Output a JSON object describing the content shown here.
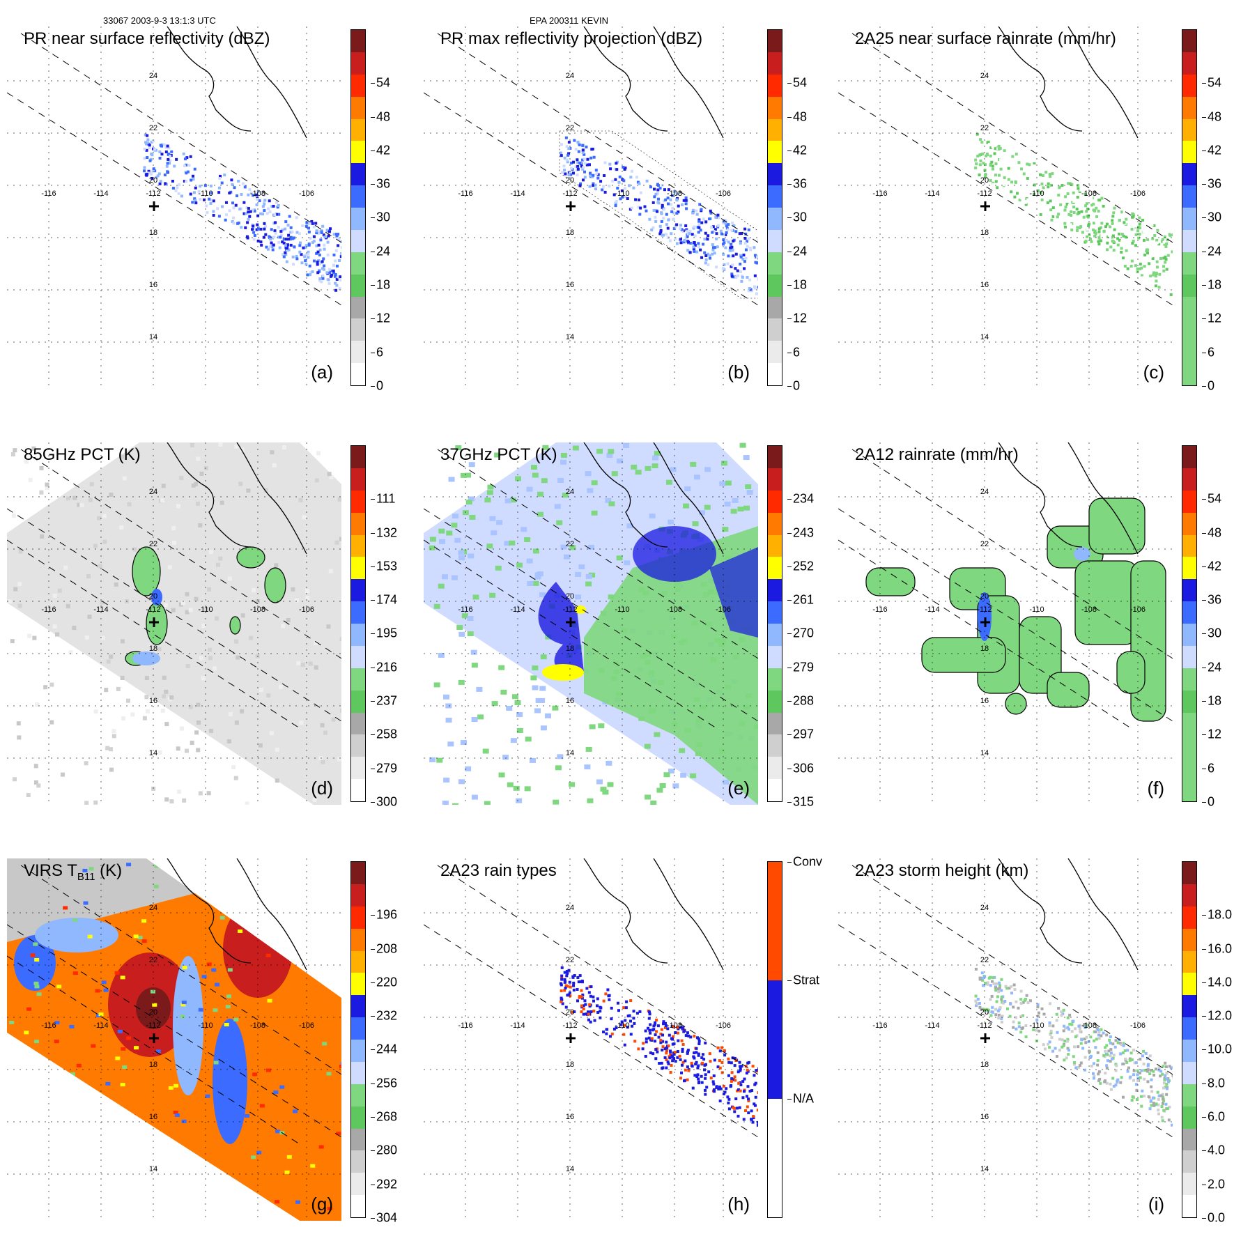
{
  "header": {
    "orbit_time": "33067 2003-9-3 13:1:3 UTC",
    "storm": "EPA 200311 KEVIN"
  },
  "map_labels": {
    "lat": [
      "24",
      "22",
      "20",
      "18",
      "16",
      "14"
    ],
    "lon": [
      "-116",
      "-114",
      "-112",
      "-110",
      "-108",
      "-106"
    ]
  },
  "panels": [
    {
      "title": "PR near surface reflectivity (dBZ)",
      "label": "(a)",
      "type": "swath",
      "ticks": [
        "0",
        "6",
        "12",
        "18",
        "24",
        "30",
        "36",
        "42",
        "48",
        "54"
      ],
      "colors": [
        "#7a1a1a",
        "#c81e1e",
        "#ff2a00",
        "#ff7a00",
        "#ffb000",
        "#ffff00",
        "#1a1ae0",
        "#3b6cff",
        "#8fb8ff",
        "#d0dcff",
        "#7fd77f",
        "#5ec85e",
        "#a8a8a8",
        "#cfcfcf",
        "#ebebeb",
        "#ffffff"
      ]
    },
    {
      "title": "PR max reflectivity projection (dBZ)",
      "label": "(b)",
      "type": "swath",
      "ticks": [
        "0",
        "6",
        "12",
        "18",
        "24",
        "30",
        "36",
        "42",
        "48",
        "54"
      ],
      "colors": [
        "#7a1a1a",
        "#c81e1e",
        "#ff2a00",
        "#ff7a00",
        "#ffb000",
        "#ffff00",
        "#1a1ae0",
        "#3b6cff",
        "#8fb8ff",
        "#d0dcff",
        "#7fd77f",
        "#5ec85e",
        "#a8a8a8",
        "#cfcfcf",
        "#ebebeb",
        "#ffffff"
      ]
    },
    {
      "title": "2A25 near surface rainrate (mm/hr)",
      "label": "(c)",
      "type": "swath",
      "ticks": [
        "0",
        "6",
        "12",
        "18",
        "24",
        "30",
        "36",
        "42",
        "48",
        "54"
      ],
      "colors": [
        "#7a1a1a",
        "#c81e1e",
        "#ff2a00",
        "#ff7a00",
        "#ffb000",
        "#ffff00",
        "#1a1ae0",
        "#3b6cff",
        "#8fb8ff",
        "#d0dcff",
        "#7fd77f",
        "#5ec85e",
        "#7fd77f",
        "#7fd77f",
        "#7fd77f",
        "#7fd77f"
      ]
    },
    {
      "title": "85GHz PCT (K)",
      "label": "(d)",
      "type": "tmi-gray",
      "ticks": [
        "300",
        "279",
        "258",
        "237",
        "216",
        "195",
        "174",
        "153",
        "132",
        "111"
      ],
      "colors": [
        "#7a1a1a",
        "#c81e1e",
        "#ff2a00",
        "#ff7a00",
        "#ffb000",
        "#ffff00",
        "#1a1ae0",
        "#3b6cff",
        "#8fb8ff",
        "#d0dcff",
        "#7fd77f",
        "#5ec85e",
        "#a8a8a8",
        "#cfcfcf",
        "#ebebeb",
        "#ffffff"
      ]
    },
    {
      "title": "37GHz PCT (K)",
      "label": "(e)",
      "type": "tmi-blue",
      "ticks": [
        "315",
        "306",
        "297",
        "288",
        "279",
        "270",
        "261",
        "252",
        "243",
        "234"
      ],
      "colors": [
        "#7a1a1a",
        "#c81e1e",
        "#ff2a00",
        "#ff7a00",
        "#ffb000",
        "#ffff00",
        "#1a1ae0",
        "#3b6cff",
        "#8fb8ff",
        "#d0dcff",
        "#7fd77f",
        "#5ec85e",
        "#a8a8a8",
        "#cfcfcf",
        "#ebebeb",
        "#ffffff"
      ]
    },
    {
      "title": "2A12 rainrate (mm/hr)",
      "label": "(f)",
      "type": "tmi-rain",
      "ticks": [
        "0",
        "6",
        "12",
        "18",
        "24",
        "30",
        "36",
        "42",
        "48",
        "54"
      ],
      "colors": [
        "#7a1a1a",
        "#c81e1e",
        "#ff2a00",
        "#ff7a00",
        "#ffb000",
        "#ffff00",
        "#1a1ae0",
        "#3b6cff",
        "#8fb8ff",
        "#d0dcff",
        "#7fd77f",
        "#5ec85e",
        "#7fd77f",
        "#7fd77f",
        "#7fd77f",
        "#7fd77f"
      ]
    },
    {
      "title": "VIRS T",
      "title_sub": "B11",
      "title_unit": " (K)",
      "label": "(g)",
      "type": "virs",
      "ticks": [
        "304",
        "292",
        "280",
        "268",
        "256",
        "244",
        "232",
        "220",
        "208",
        "196"
      ],
      "colors": [
        "#7a1a1a",
        "#c81e1e",
        "#ff2a00",
        "#ff7a00",
        "#ffb000",
        "#ffff00",
        "#1a1ae0",
        "#3b6cff",
        "#8fb8ff",
        "#d0dcff",
        "#7fd77f",
        "#5ec85e",
        "#a8a8a8",
        "#cfcfcf",
        "#ebebeb",
        "#ffffff"
      ]
    },
    {
      "title": "2A23 rain types",
      "label": "(h)",
      "type": "raintype",
      "ticks": [
        "N/A",
        "Strat",
        "Conv"
      ],
      "colors": [
        "#ff4a00",
        "#ff4a00",
        "#1a1ae0",
        "#1a1ae0",
        "#ffffff",
        "#ffffff"
      ]
    },
    {
      "title": "2A23 storm height (km)",
      "label": "(i)",
      "type": "height",
      "ticks": [
        "0.0",
        "2.0",
        "4.0",
        "6.0",
        "8.0",
        "10.0",
        "12.0",
        "14.0",
        "16.0",
        "18.0"
      ],
      "colors": [
        "#7a1a1a",
        "#c81e1e",
        "#ff2a00",
        "#ff7a00",
        "#ffb000",
        "#ffff00",
        "#1a1ae0",
        "#3b6cff",
        "#8fb8ff",
        "#d0dcff",
        "#7fd77f",
        "#5ec85e",
        "#a8a8a8",
        "#cfcfcf",
        "#ebebeb",
        "#ffffff"
      ]
    }
  ]
}
